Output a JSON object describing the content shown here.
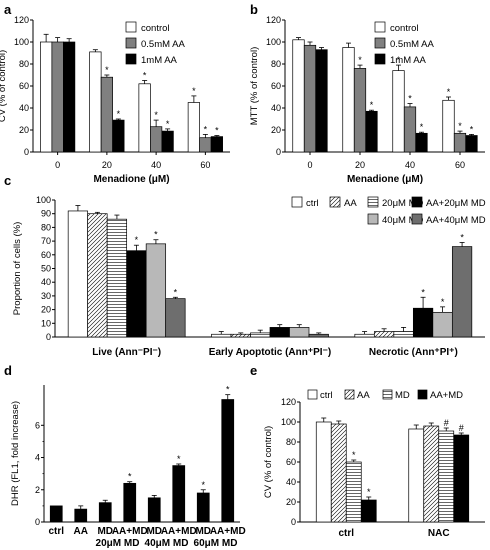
{
  "chart_data": [
    {
      "panel": "a",
      "type": "bar",
      "ylabel": "CV (% of control)",
      "xlabel": "Menadione (μM)",
      "ylim": [
        0,
        120
      ],
      "yticks": [
        0,
        20,
        40,
        60,
        80,
        100,
        120
      ],
      "categories": [
        "0",
        "20",
        "40",
        "60"
      ],
      "series": [
        {
          "name": "control",
          "color": "#ffffff",
          "values": [
            100,
            91,
            62,
            45
          ],
          "errors": [
            7,
            2,
            3,
            6
          ],
          "sig": [
            "",
            "",
            "*",
            "*"
          ]
        },
        {
          "name": "0.5mM AA",
          "color": "#808080",
          "values": [
            100,
            68,
            23,
            13
          ],
          "errors": [
            4,
            2,
            6,
            3
          ],
          "sig": [
            "",
            "*",
            "*",
            "*"
          ]
        },
        {
          "name": "1mM AA",
          "color": "#000000",
          "values": [
            100,
            29,
            19,
            14
          ],
          "errors": [
            3,
            1,
            2,
            1
          ],
          "sig": [
            "",
            "*",
            "*",
            "*"
          ]
        }
      ],
      "legend": "top-right"
    },
    {
      "panel": "b",
      "type": "bar",
      "ylabel": "MTT (% of control)",
      "xlabel": "Menadione (μM)",
      "ylim": [
        0,
        120
      ],
      "yticks": [
        0,
        20,
        40,
        60,
        80,
        100,
        120
      ],
      "categories": [
        "0",
        "20",
        "40",
        "60"
      ],
      "series": [
        {
          "name": "control",
          "color": "#ffffff",
          "values": [
            102,
            95,
            74,
            47
          ],
          "errors": [
            2,
            4,
            5,
            3
          ],
          "sig": [
            "",
            "",
            "*",
            "*"
          ]
        },
        {
          "name": "0.5mM AA",
          "color": "#808080",
          "values": [
            97,
            76,
            41,
            17
          ],
          "errors": [
            3,
            3,
            3,
            2
          ],
          "sig": [
            "",
            "*",
            "*",
            "*"
          ]
        },
        {
          "name": "1mM AA",
          "color": "#000000",
          "values": [
            93,
            37,
            17,
            15
          ],
          "errors": [
            2,
            1,
            1,
            1
          ],
          "sig": [
            "",
            "*",
            "*",
            "*"
          ]
        }
      ],
      "legend": "top-right"
    },
    {
      "panel": "c",
      "type": "bar",
      "ylabel": "Proportion of cells (%)",
      "ylim": [
        0,
        100
      ],
      "yticks": [
        0,
        10,
        20,
        30,
        40,
        50,
        60,
        70,
        80,
        90,
        100
      ],
      "categories": [
        "Live (Ann⁻PI⁻)",
        "Early Apoptotic (Ann⁺PI⁻)",
        "Necrotic (Ann⁺PI⁺)"
      ],
      "series": [
        {
          "name": "ctrl",
          "color": "#ffffff",
          "pattern": "none",
          "values": [
            92,
            2,
            2
          ],
          "errors": [
            4,
            2,
            2
          ],
          "sig": [
            "",
            "",
            ""
          ]
        },
        {
          "name": "AA",
          "color": "#ffffff",
          "pattern": "diag",
          "values": [
            90,
            2,
            4
          ],
          "errors": [
            1,
            1,
            2
          ],
          "sig": [
            "",
            "",
            ""
          ]
        },
        {
          "name": "20μM MD",
          "color": "#ffffff",
          "pattern": "hlines",
          "values": [
            86,
            3,
            4
          ],
          "errors": [
            3,
            2,
            3
          ],
          "sig": [
            "",
            "",
            ""
          ]
        },
        {
          "name": "AA+20μM MD",
          "color": "#000000",
          "pattern": "none",
          "values": [
            63,
            7,
            21
          ],
          "errors": [
            4,
            2,
            8
          ],
          "sig": [
            "*",
            "",
            "*"
          ]
        },
        {
          "name": "40μM MD",
          "color": "#b8b8b8",
          "pattern": "none",
          "values": [
            68,
            7,
            18
          ],
          "errors": [
            3,
            2,
            4
          ],
          "sig": [
            "*",
            "",
            "*"
          ]
        },
        {
          "name": "AA+40μM MD",
          "color": "#6e6e6e",
          "pattern": "none",
          "values": [
            28,
            2,
            66
          ],
          "errors": [
            1,
            1,
            3
          ],
          "sig": [
            "*",
            "",
            "*"
          ]
        }
      ],
      "legend": "top-right"
    },
    {
      "panel": "d",
      "type": "bar",
      "ylabel": "DHR (FL1, fold increase)",
      "ylim": [
        0,
        8.5
      ],
      "yticks": [
        0,
        2,
        4,
        6
      ],
      "categories": [
        "ctrl",
        "AA",
        "MD",
        "AA+MD",
        "MD",
        "AA+MD",
        "MD",
        "AA+MD"
      ],
      "groups": [
        "20μM MD",
        "40μM MD",
        "60μM MD"
      ],
      "values": [
        1.0,
        0.8,
        1.2,
        2.4,
        1.5,
        3.5,
        1.8,
        7.6
      ],
      "errors": [
        0,
        0.2,
        0.15,
        0.1,
        0.15,
        0.1,
        0.2,
        0.3
      ],
      "sig": [
        "",
        "",
        "",
        "*",
        "",
        "*",
        "*",
        "*"
      ],
      "color": "#000000"
    },
    {
      "panel": "e",
      "type": "bar",
      "ylabel": "CV (% of control)",
      "ylim": [
        0,
        120
      ],
      "yticks": [
        0,
        20,
        40,
        60,
        80,
        100,
        120
      ],
      "categories": [
        "ctrl",
        "NAC"
      ],
      "series": [
        {
          "name": "ctrl",
          "color": "#ffffff",
          "pattern": "none",
          "values": [
            100,
            93
          ],
          "errors": [
            4,
            4
          ],
          "sig": [
            "",
            ""
          ]
        },
        {
          "name": "AA",
          "color": "#ffffff",
          "pattern": "diag",
          "values": [
            98,
            96
          ],
          "errors": [
            3,
            3
          ],
          "sig": [
            "",
            ""
          ]
        },
        {
          "name": "MD",
          "color": "#ffffff",
          "pattern": "hlines",
          "values": [
            60,
            91
          ],
          "errors": [
            2,
            3
          ],
          "sig": [
            "*",
            "#"
          ]
        },
        {
          "name": "AA+MD",
          "color": "#000000",
          "pattern": "none",
          "values": [
            22,
            87
          ],
          "errors": [
            3,
            2
          ],
          "sig": [
            "*",
            "#"
          ]
        }
      ],
      "legend": "top"
    }
  ],
  "panel_labels": [
    "a",
    "b",
    "c",
    "d",
    "e"
  ]
}
